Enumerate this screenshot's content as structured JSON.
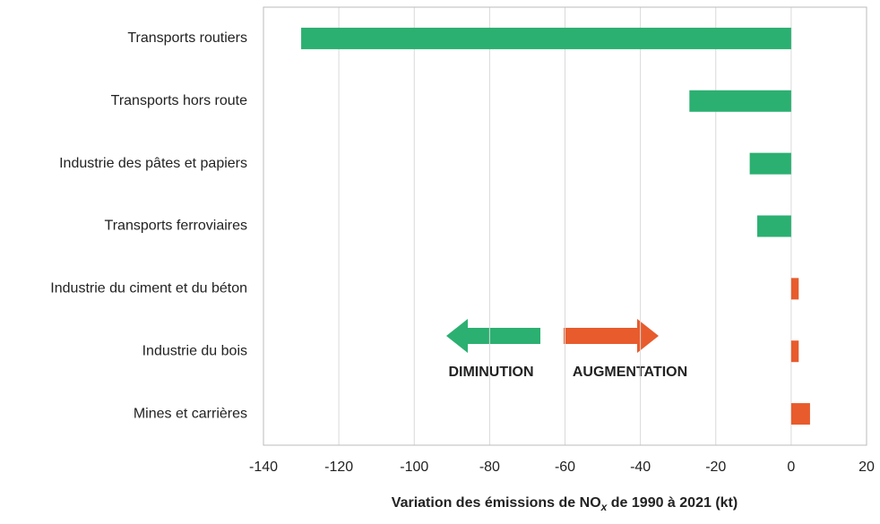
{
  "chart_data": {
    "type": "barh",
    "categories": [
      "Transports routiers",
      "Transports hors route",
      "Industrie des pâtes et papiers",
      "Transports ferroviaires",
      "Industrie du ciment et du béton",
      "Industrie du bois",
      "Mines et carrières"
    ],
    "values": [
      -130,
      -27,
      -11,
      -9,
      2,
      2,
      5
    ],
    "colors": [
      "#2bb071",
      "#2bb071",
      "#2bb071",
      "#2bb071",
      "#e85b2c",
      "#e85b2c",
      "#e85b2c"
    ],
    "xlim": [
      -140,
      20
    ],
    "xticks": [
      -140,
      -120,
      -100,
      -80,
      -60,
      -40,
      -20,
      0,
      20
    ],
    "grid": true,
    "x_label": [
      "Variation des émissions de NO",
      "x",
      " de 1990 à 2021 (kt)"
    ],
    "annotations": [
      "DIMINUTION",
      "AUGMENTATION"
    ]
  }
}
